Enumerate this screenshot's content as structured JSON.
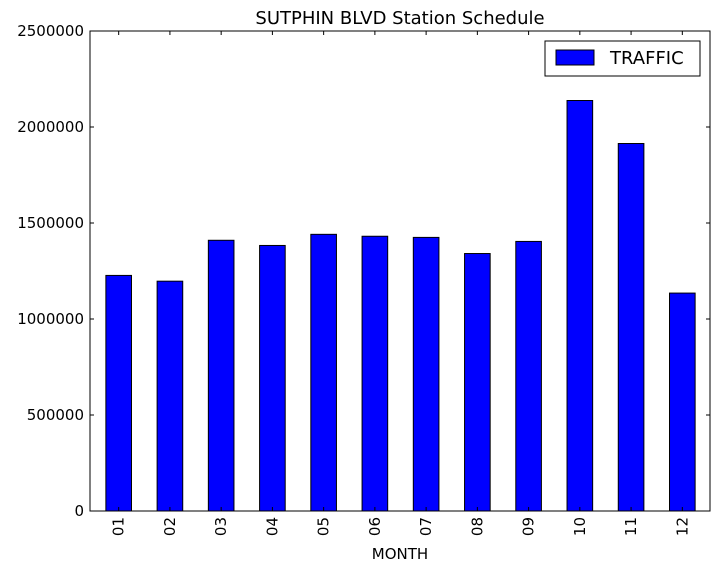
{
  "chart_data": {
    "type": "bar",
    "title": "SUTPHIN BLVD Station Schedule",
    "xlabel": "MONTH",
    "ylabel": "",
    "categories": [
      "01",
      "02",
      "03",
      "04",
      "05",
      "06",
      "07",
      "08",
      "09",
      "10",
      "11",
      "12"
    ],
    "series": [
      {
        "name": "TRAFFIC",
        "color": "#0000ff",
        "values": [
          1227000,
          1197000,
          1410000,
          1383000,
          1441000,
          1431000,
          1425000,
          1341000,
          1404000,
          2138000,
          1914000,
          1135000
        ]
      }
    ],
    "ylim": [
      0,
      2500000
    ],
    "yticks": [
      "0",
      "500000",
      "1000000",
      "1500000",
      "2000000",
      "2500000"
    ],
    "grid": false,
    "legend": "top-right"
  }
}
